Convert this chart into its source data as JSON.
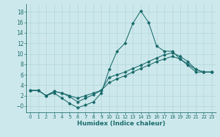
{
  "xlabel": "Humidex (Indice chaleur)",
  "xlim": [
    -0.5,
    23.5
  ],
  "ylim": [
    -1.2,
    19.5
  ],
  "xticks": [
    0,
    1,
    2,
    3,
    4,
    5,
    6,
    7,
    8,
    9,
    10,
    11,
    12,
    13,
    14,
    15,
    16,
    17,
    18,
    19,
    20,
    21,
    22,
    23
  ],
  "yticks": [
    0,
    2,
    4,
    6,
    8,
    10,
    12,
    14,
    16,
    18
  ],
  "ytick_labels": [
    "−0",
    "2",
    "4",
    "6",
    "8",
    "10",
    "12",
    "14",
    "16",
    "18"
  ],
  "bg_color": "#cde8ec",
  "line_color": "#1a6b6b",
  "grid_color": "#afd4d8",
  "line1_x": [
    0,
    1,
    2,
    3,
    4,
    5,
    6,
    7,
    8,
    9,
    10,
    11,
    12,
    13,
    14,
    15,
    16,
    17,
    18,
    19,
    20,
    21,
    22,
    23
  ],
  "line1_y": [
    3.0,
    3.0,
    2.0,
    2.5,
    1.5,
    0.5,
    -0.3,
    0.2,
    0.8,
    2.5,
    7.0,
    10.5,
    12.0,
    15.8,
    18.2,
    16.0,
    11.5,
    10.5,
    10.5,
    9.0,
    7.8,
    6.5,
    6.5,
    6.5
  ],
  "line2_x": [
    0,
    1,
    2,
    3,
    4,
    5,
    6,
    7,
    8,
    9,
    10,
    11,
    12,
    13,
    14,
    15,
    16,
    17,
    18,
    19,
    20,
    21,
    22,
    23
  ],
  "line2_y": [
    3.0,
    3.0,
    2.0,
    2.8,
    2.5,
    2.0,
    1.5,
    2.0,
    2.5,
    3.0,
    5.5,
    6.0,
    6.5,
    7.2,
    7.8,
    8.5,
    9.2,
    9.8,
    10.2,
    9.5,
    8.5,
    7.0,
    6.5,
    6.5
  ],
  "line3_x": [
    0,
    1,
    2,
    3,
    4,
    5,
    6,
    7,
    8,
    9,
    10,
    11,
    12,
    13,
    14,
    15,
    16,
    17,
    18,
    19,
    20,
    21,
    22,
    23
  ],
  "line3_y": [
    3.0,
    3.0,
    2.0,
    2.8,
    2.5,
    1.8,
    0.8,
    1.5,
    2.2,
    3.0,
    4.5,
    5.2,
    5.8,
    6.5,
    7.2,
    7.8,
    8.5,
    9.0,
    9.5,
    9.0,
    8.0,
    7.0,
    6.5,
    6.5
  ],
  "marker": "D",
  "markersize": 1.8,
  "linewidth": 0.8
}
